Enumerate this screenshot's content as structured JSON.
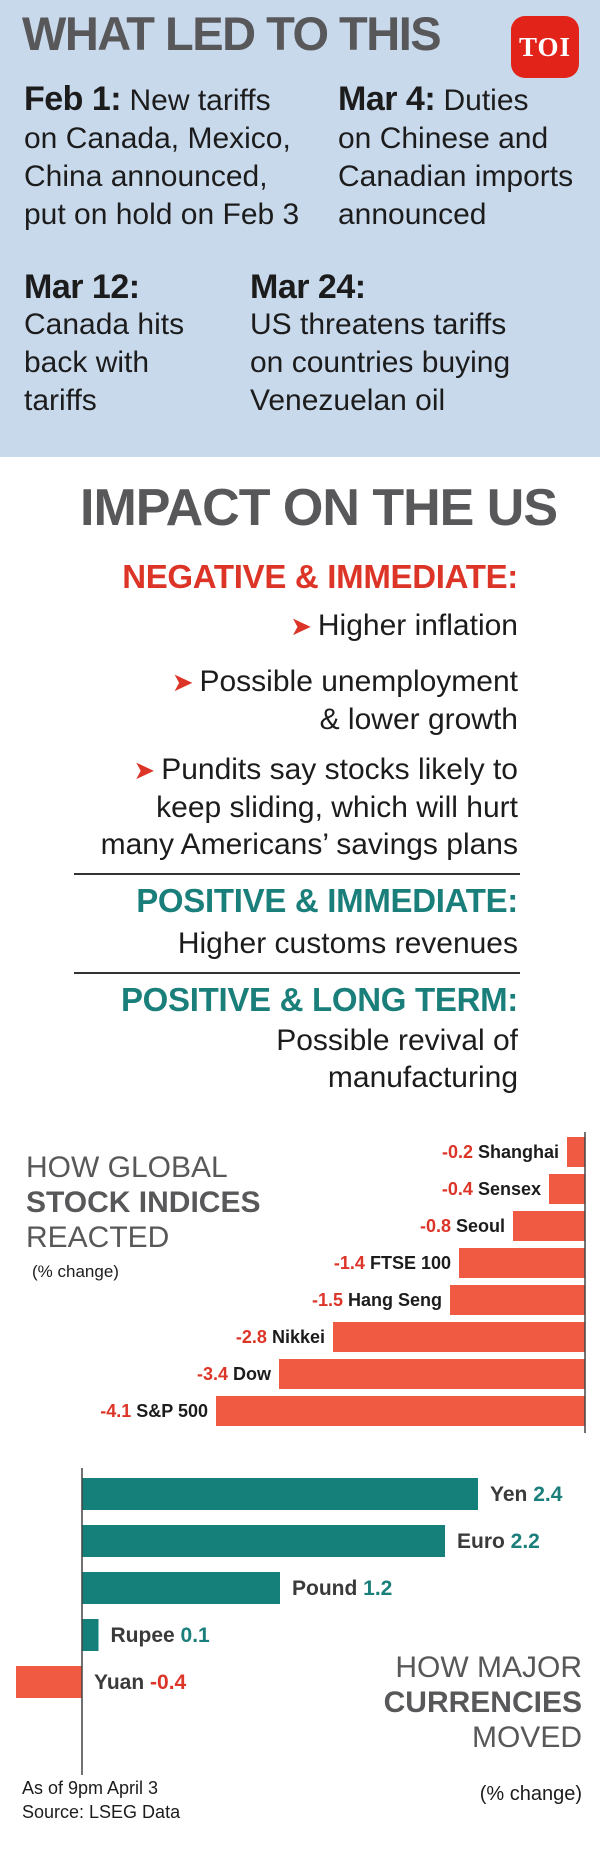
{
  "timeline": {
    "title": "WHAT LED TO THIS",
    "logo": "TOI",
    "events": [
      {
        "date": "Feb 1:",
        "text": [
          "New tariffs",
          "on Canada, Mexico,",
          "China announced,",
          "put on hold on Feb 3"
        ]
      },
      {
        "date": "Mar 4:",
        "text": [
          "Duties",
          "on Chinese and",
          "Canadian imports",
          "announced"
        ]
      },
      {
        "date": "Mar 12:",
        "text": [
          "Canada hits",
          "back with",
          "tariffs"
        ]
      },
      {
        "date": "Mar 24:",
        "text": [
          "US threatens tariffs",
          "on countries buying",
          "Venezuelan oil"
        ]
      }
    ]
  },
  "impact": {
    "title": "IMPACT ON THE US",
    "negative_heading": "NEGATIVE & IMMEDIATE:",
    "negative_items": [
      [
        "Higher inflation"
      ],
      [
        "Possible unemployment",
        "& lower growth"
      ],
      [
        "Pundits say stocks likely to",
        "keep sliding, which will hurt",
        "many Americans’ savings plans"
      ]
    ],
    "positive_immediate_heading": "POSITIVE & IMMEDIATE:",
    "positive_immediate_item": "Higher customs revenues",
    "positive_long_heading": "POSITIVE & LONG TERM:",
    "positive_long_item": [
      "Possible revival of",
      "manufacturing"
    ],
    "arrow_symbol": "➤"
  },
  "colors": {
    "timeline_bg": "#c9d9ec",
    "negative_red": "#dc3427",
    "bar_red": "#f05a43",
    "positive_teal": "#1a7f7a",
    "bar_teal": "#15807a",
    "title_gray": "#58585a"
  },
  "stock_chart": {
    "label_line1": "HOW GLOBAL",
    "label_line2": "STOCK INDICES",
    "label_line3": "REACTED",
    "unit_note": "(% change)"
  },
  "currency_chart": {
    "label_line1": "HOW MAJOR",
    "label_line2": "CURRENCIES",
    "label_line3": "MOVED",
    "unit_note": "(% change)"
  },
  "footnote": {
    "line1": "As of 9pm April 3",
    "line2": "Source: LSEG Data"
  },
  "chart_data": [
    {
      "type": "bar",
      "orientation": "horizontal",
      "title": "HOW GLOBAL STOCK INDICES REACTED",
      "unit": "(% change)",
      "categories": [
        "Shanghai",
        "Sensex",
        "Seoul",
        "FTSE 100",
        "Hang Seng",
        "Nikkei",
        "Dow",
        "S&P 500"
      ],
      "values": [
        -0.2,
        -0.4,
        -0.8,
        -1.4,
        -1.5,
        -2.8,
        -3.4,
        -4.1
      ],
      "labels": [
        "-0.2",
        "-0.4",
        "-0.8",
        "-1.4",
        "-1.5",
        "-2.8",
        "-3.4",
        "-4.1"
      ],
      "grid": false
    },
    {
      "type": "bar",
      "orientation": "horizontal",
      "title": "HOW MAJOR CURRENCIES MOVED",
      "unit": "(% change)",
      "categories": [
        "Yen",
        "Euro",
        "Pound",
        "Rupee",
        "Yuan"
      ],
      "values": [
        2.4,
        2.2,
        1.2,
        0.1,
        -0.4
      ],
      "labels": [
        "2.4",
        "2.2",
        "1.2",
        "0.1",
        "-0.4"
      ],
      "grid": false
    }
  ]
}
